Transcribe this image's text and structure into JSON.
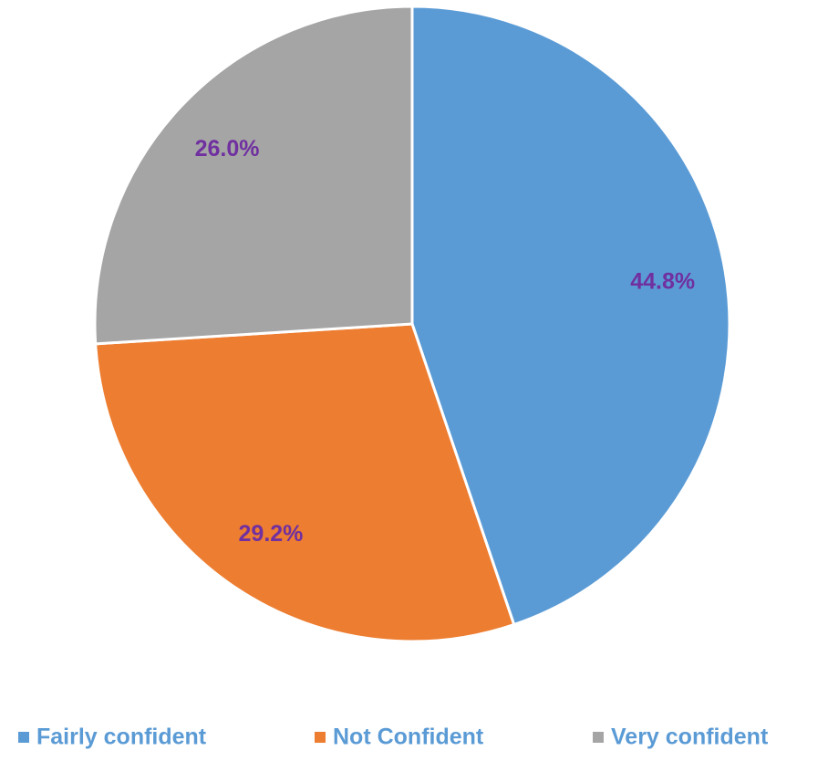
{
  "chart_data": {
    "type": "pie",
    "categories": [
      "Fairly confident",
      "Not Confident",
      "Very confident"
    ],
    "values": [
      44.8,
      29.2,
      26.0
    ],
    "value_labels": [
      "44.8%",
      "29.2%",
      "26.0%"
    ],
    "colors": [
      "#5b9bd5",
      "#ed7d31",
      "#a5a5a5"
    ],
    "label_color": "#7030a0",
    "legend": "bottom"
  }
}
